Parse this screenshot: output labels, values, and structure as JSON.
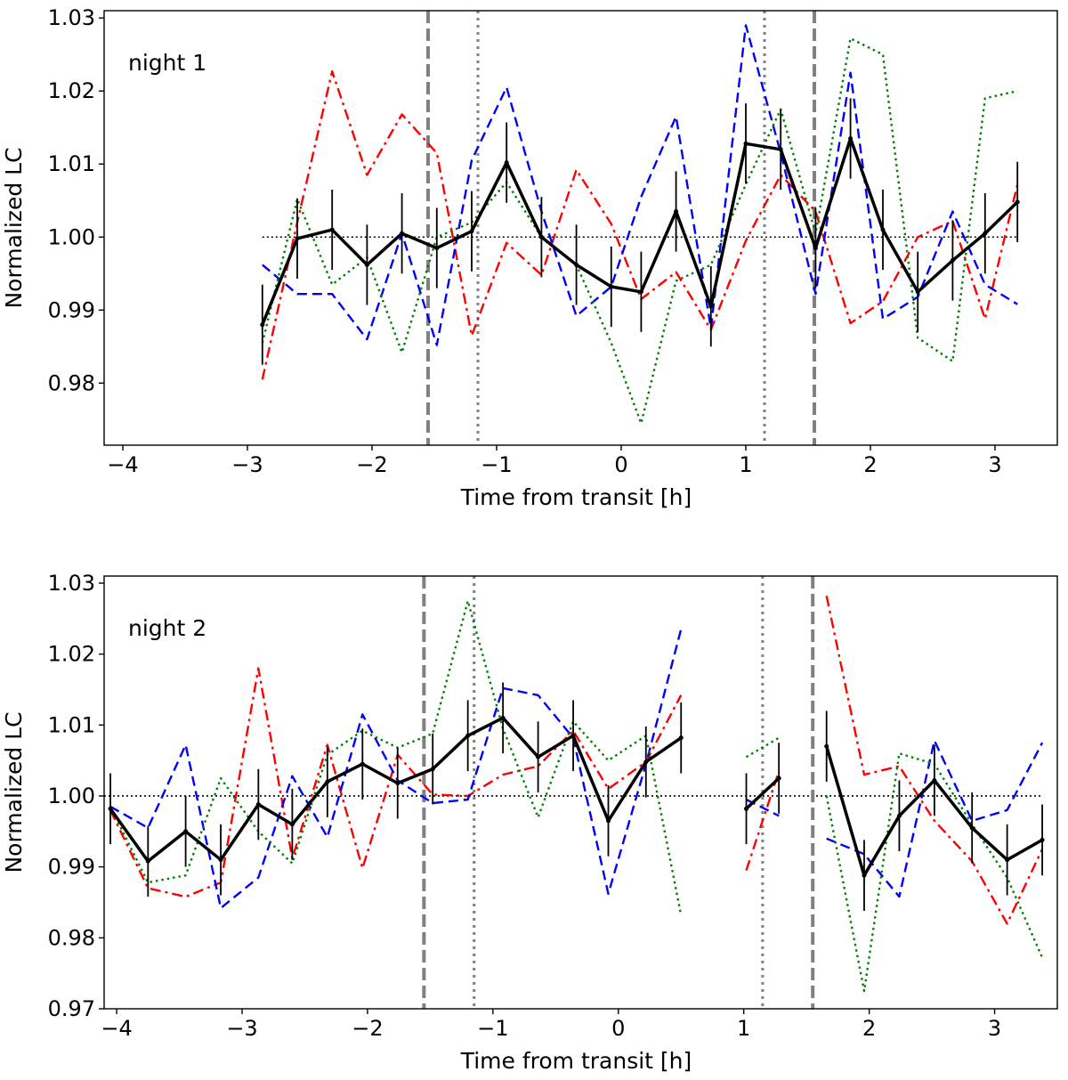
{
  "chart_data": [
    {
      "type": "line",
      "annotation": "night 1",
      "xlabel": "Time from transit [h]",
      "ylabel": "Normalized LC",
      "xlim": [
        -4.15,
        3.5
      ],
      "ylim": [
        0.9715,
        1.031
      ],
      "xticks": [
        -4,
        -3,
        -2,
        -1,
        0,
        1,
        2,
        3
      ],
      "xtick_labels": [
        "−4",
        "−3",
        "−2",
        "−1",
        "0",
        "1",
        "2",
        "3"
      ],
      "yticks": [
        0.98,
        0.99,
        1.0,
        1.01,
        1.02,
        1.03
      ],
      "ytick_labels": [
        "0.98",
        "0.99",
        "1.00",
        "1.01",
        "1.02",
        "1.03"
      ],
      "reference_line": {
        "y": 1.0,
        "x_range": [
          -2.88,
          3.18
        ],
        "style": "dotted",
        "color": "#000000"
      },
      "vlines": [
        {
          "x": -1.55,
          "style": "dashed",
          "color": "#808080"
        },
        {
          "x": 1.55,
          "style": "dashed",
          "color": "#808080"
        },
        {
          "x": -1.15,
          "style": "dotted",
          "color": "#808080"
        },
        {
          "x": 1.15,
          "style": "dotted",
          "color": "#808080"
        }
      ],
      "series": [
        {
          "name": "red",
          "style": "dashdot",
          "color": "#ff0000",
          "x": [
            -2.88,
            -2.6,
            -2.32,
            -2.04,
            -1.76,
            -1.48,
            -1.2,
            -0.92,
            -0.64,
            -0.36,
            -0.08,
            0.16,
            0.44,
            0.72,
            1.0,
            1.28,
            1.56,
            1.84,
            2.1,
            2.38,
            2.66,
            2.92,
            3.18
          ],
          "values": [
            0.9805,
            1.002,
            1.0227,
            1.0085,
            1.0168,
            1.0115,
            0.9865,
            0.9992,
            0.9948,
            1.0092,
            1.0018,
            0.9915,
            0.9952,
            0.9873,
            0.9995,
            1.0085,
            1.0035,
            0.9882,
            0.9912,
            1.0,
            1.0022,
            0.9888,
            1.0072
          ]
        },
        {
          "name": "blue",
          "style": "dashed",
          "color": "#0000ff",
          "x": [
            -2.88,
            -2.6,
            -2.32,
            -2.04,
            -1.76,
            -1.48,
            -1.2,
            -0.92,
            -0.64,
            -0.36,
            -0.08,
            0.16,
            0.44,
            0.72,
            1.0,
            1.28,
            1.56,
            1.84,
            2.1,
            2.38,
            2.66,
            2.92,
            3.18
          ],
          "values": [
            0.9962,
            0.9922,
            0.9922,
            0.986,
            1.0005,
            0.9852,
            1.0105,
            1.0205,
            1.0035,
            0.9892,
            0.9932,
            1.0055,
            1.0165,
            0.9875,
            1.029,
            1.0115,
            0.9922,
            1.0225,
            0.9888,
            0.9918,
            1.0035,
            0.9935,
            0.9908
          ]
        },
        {
          "name": "green",
          "style": "dotted",
          "color": "#008000",
          "x": [
            -2.88,
            -2.6,
            -2.32,
            -2.04,
            -1.76,
            -1.48,
            -1.2,
            -0.92,
            -0.64,
            -0.36,
            -0.08,
            0.16,
            0.44,
            0.72,
            1.0,
            1.28,
            1.56,
            1.84,
            2.1,
            2.38,
            2.66,
            2.92,
            3.18
          ],
          "values": [
            0.9855,
            1.0052,
            0.9935,
            0.9972,
            0.9842,
            1.0,
            1.002,
            1.0075,
            1.0,
            0.9962,
            0.9855,
            0.9745,
            0.994,
            0.9962,
            1.0072,
            1.0175,
            1.0005,
            1.0272,
            1.025,
            0.9862,
            0.983,
            1.019,
            1.02
          ]
        },
        {
          "name": "mean",
          "style": "solid",
          "color": "#000000",
          "x": [
            -2.88,
            -2.6,
            -2.32,
            -2.04,
            -1.76,
            -1.48,
            -1.2,
            -0.92,
            -0.64,
            -0.36,
            -0.08,
            0.16,
            0.44,
            0.72,
            1.0,
            1.28,
            1.56,
            1.84,
            2.1,
            2.38,
            2.66,
            2.92,
            3.18
          ],
          "values": [
            0.988,
            0.9998,
            1.001,
            0.9962,
            1.0005,
            0.9985,
            1.0008,
            1.0102,
            1.0,
            0.9962,
            0.9932,
            0.9925,
            1.0035,
            0.9905,
            1.0128,
            1.012,
            0.9985,
            1.0135,
            1.001,
            0.9925,
            0.9968,
            1.0005,
            1.0048
          ],
          "errors": [
            0.0055,
            0.0055,
            0.0055,
            0.0055,
            0.0055,
            0.0055,
            0.0055,
            0.0055,
            0.0055,
            0.0055,
            0.0055,
            0.0055,
            0.0055,
            0.0055,
            0.0055,
            0.0055,
            0.0055,
            0.0055,
            0.0055,
            0.0055,
            0.0055,
            0.0055,
            0.0055
          ]
        }
      ]
    },
    {
      "type": "line",
      "annotation": "night 2",
      "xlabel": "Time from transit [h]",
      "ylabel": "Normalized LC",
      "xlim": [
        -4.1,
        3.5
      ],
      "ylim": [
        0.97,
        1.031
      ],
      "xticks": [
        -4,
        -3,
        -2,
        -1,
        0,
        1,
        2,
        3
      ],
      "xtick_labels": [
        "−4",
        "−3",
        "−2",
        "−1",
        "0",
        "1",
        "2",
        "3"
      ],
      "yticks": [
        0.97,
        0.98,
        0.99,
        1.0,
        1.01,
        1.02,
        1.03
      ],
      "ytick_labels": [
        "0.97",
        "0.98",
        "0.99",
        "1.00",
        "1.01",
        "1.02",
        "1.03"
      ],
      "reference_line": {
        "y": 1.0,
        "x_range": [
          -4.1,
          3.38
        ],
        "style": "dotted",
        "color": "#000000"
      },
      "vlines": [
        {
          "x": -1.55,
          "style": "dashed",
          "color": "#808080"
        },
        {
          "x": 1.55,
          "style": "dashed",
          "color": "#808080"
        },
        {
          "x": -1.15,
          "style": "dotted",
          "color": "#808080"
        },
        {
          "x": 1.15,
          "style": "dotted",
          "color": "#808080"
        }
      ],
      "series": [
        {
          "name": "red",
          "style": "dashdot",
          "color": "#ff0000",
          "segments": [
            {
              "x": [
                -4.05,
                -3.75,
                -3.45,
                -3.17,
                -2.87,
                -2.6,
                -2.32,
                -2.04,
                -1.76,
                -1.48,
                -1.2,
                -0.92,
                -0.64,
                -0.36,
                -0.08,
                0.22,
                0.5
              ],
              "values": [
                0.998,
                0.987,
                0.9858,
                0.9878,
                1.018,
                0.9912,
                1.0072,
                0.9898,
                1.0058,
                1.0002,
                1.0,
                1.003,
                1.0042,
                1.0092,
                1.001,
                1.0048,
                1.0142
              ]
            },
            {
              "x": [
                1.02,
                1.28
              ],
              "values": [
                0.9895,
                1.0035
              ]
            },
            {
              "x": [
                1.66,
                1.96,
                2.24,
                2.52,
                2.82,
                3.1,
                3.38
              ],
              "values": [
                1.0282,
                1.003,
                1.0042,
                0.9965,
                0.9908,
                0.982,
                0.9925
              ]
            }
          ]
        },
        {
          "name": "blue",
          "style": "dashed",
          "color": "#0000ff",
          "segments": [
            {
              "x": [
                -4.05,
                -3.75,
                -3.45,
                -3.17,
                -2.87,
                -2.6,
                -2.32,
                -2.04,
                -1.76,
                -1.48,
                -1.2,
                -0.92,
                -0.64,
                -0.36,
                -0.08,
                0.22,
                0.5
              ],
              "values": [
                0.9985,
                0.9955,
                1.0072,
                0.9842,
                0.9885,
                1.0028,
                0.9942,
                1.0115,
                1.0022,
                0.999,
                0.9995,
                1.0152,
                1.0142,
                1.0082,
                0.9862,
                1.0045,
                1.0235
              ]
            },
            {
              "x": [
                1.02,
                1.28
              ],
              "values": [
                0.9995,
                0.9972
              ]
            },
            {
              "x": [
                1.66,
                1.96,
                2.24,
                2.52,
                2.82,
                3.1,
                3.38
              ],
              "values": [
                0.994,
                0.9918,
                0.9858,
                1.0078,
                0.9965,
                0.998,
                1.0075
              ]
            }
          ]
        },
        {
          "name": "green",
          "style": "dotted",
          "color": "#008000",
          "segments": [
            {
              "x": [
                -4.05,
                -3.75,
                -3.45,
                -3.17,
                -2.87,
                -2.6,
                -2.32,
                -2.04,
                -1.76,
                -1.48,
                -1.2,
                -0.92,
                -0.64,
                -0.36,
                -0.08,
                0.22,
                0.5
              ],
              "values": [
                0.9985,
                0.9878,
                0.9888,
                1.0025,
                0.995,
                0.9905,
                1.0058,
                1.0092,
                1.0068,
                1.0088,
                1.0275,
                1.0095,
                0.997,
                1.0105,
                1.005,
                1.0085,
                0.9832
              ]
            },
            {
              "x": [
                1.02,
                1.28
              ],
              "values": [
                1.0055,
                1.0082
              ]
            },
            {
              "x": [
                1.66,
                1.96,
                2.24,
                2.52,
                2.82,
                3.1,
                3.38
              ],
              "values": [
                1.0,
                0.9725,
                1.006,
                1.0045,
                0.996,
                0.9885,
                0.9772
              ]
            }
          ]
        },
        {
          "name": "mean",
          "style": "solid",
          "color": "#000000",
          "segments": [
            {
              "x": [
                -4.05,
                -3.75,
                -3.45,
                -3.17,
                -2.87,
                -2.6,
                -2.32,
                -2.04,
                -1.76,
                -1.48,
                -1.2,
                -0.92,
                -0.64,
                -0.36,
                -0.08,
                0.22,
                0.5
              ],
              "values": [
                0.9982,
                0.9908,
                0.995,
                0.991,
                0.9988,
                0.996,
                1.002,
                1.0045,
                1.0018,
                1.0038,
                1.0085,
                1.011,
                1.0055,
                1.0085,
                0.9965,
                1.0048,
                1.0082
              ],
              "errors": [
                0.005,
                0.005,
                0.005,
                0.005,
                0.005,
                0.005,
                0.005,
                0.005,
                0.005,
                0.005,
                0.005,
                0.005,
                0.005,
                0.005,
                0.005,
                0.005,
                0.005
              ]
            },
            {
              "x": [
                1.02,
                1.28
              ],
              "values": [
                0.9982,
                1.0025
              ],
              "errors": [
                0.005,
                0.005
              ]
            },
            {
              "x": [
                1.66,
                1.96,
                2.24,
                2.52,
                2.82,
                3.1,
                3.38
              ],
              "values": [
                1.007,
                0.9888,
                0.9972,
                1.0022,
                0.9955,
                0.991,
                0.9938
              ],
              "errors": [
                0.005,
                0.005,
                0.005,
                0.005,
                0.005,
                0.005,
                0.005
              ]
            }
          ]
        }
      ]
    }
  ]
}
